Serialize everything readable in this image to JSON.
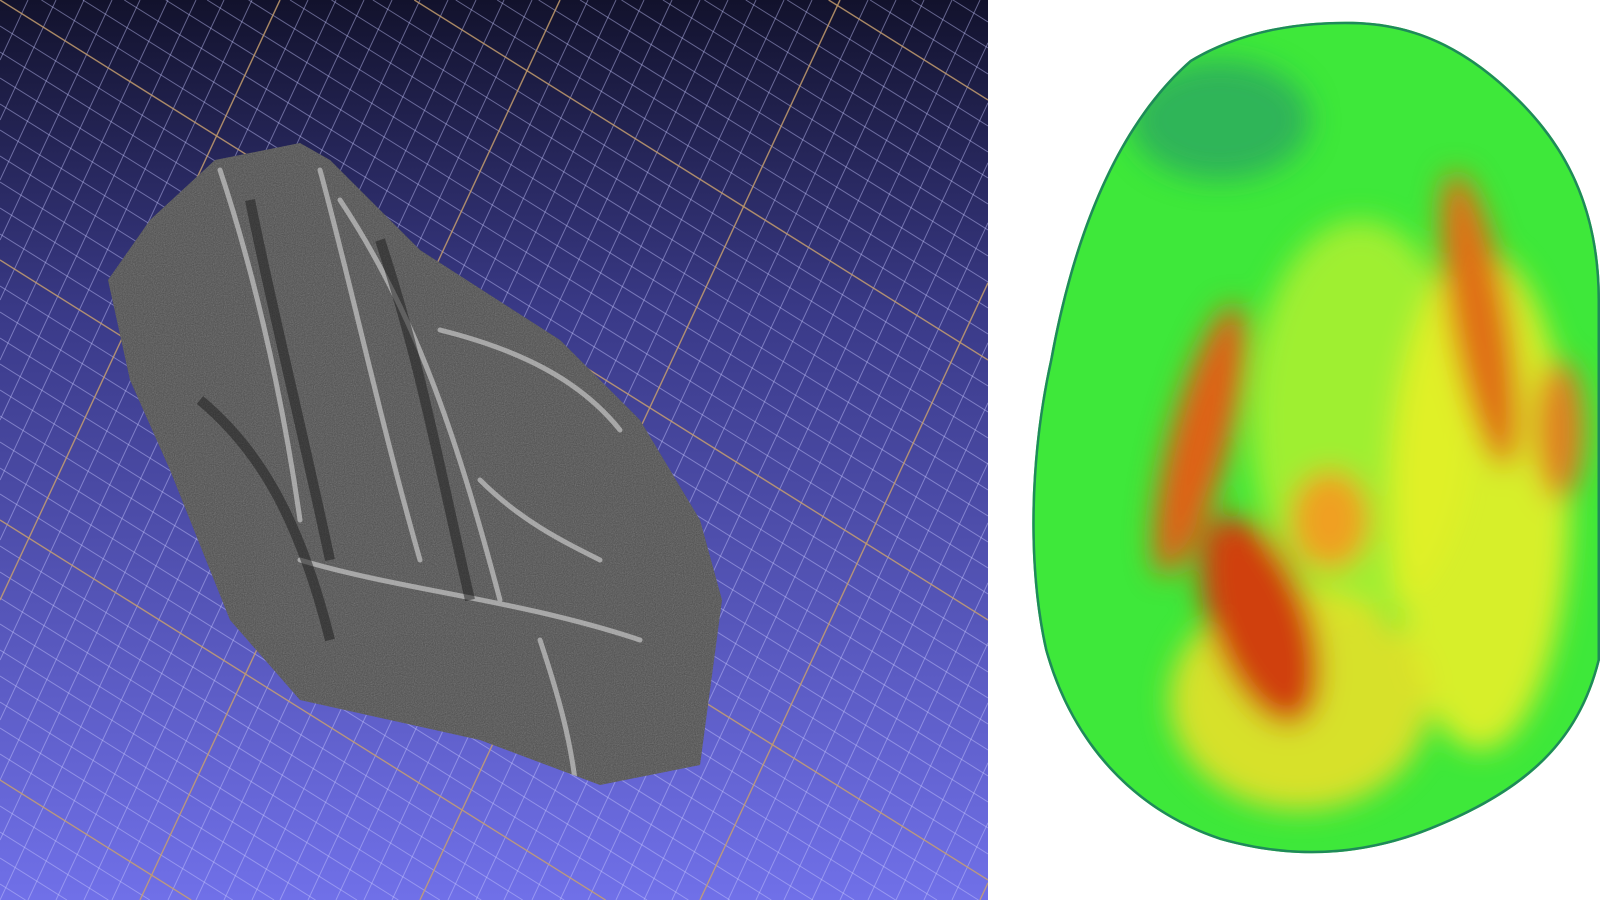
{
  "left_view": {
    "background_top": "#12122c",
    "background_bottom": "#7070e8",
    "grid_minor_color": "#c8c8ff",
    "grid_major_color": "#c89a5a",
    "mesh_color": "#5a5a5a"
  },
  "right_view": {
    "background": "#ffffff",
    "heatmap_colors": [
      "#1f8a5a",
      "#3ee83a",
      "#d8f02a",
      "#f0a020",
      "#c82010"
    ]
  }
}
